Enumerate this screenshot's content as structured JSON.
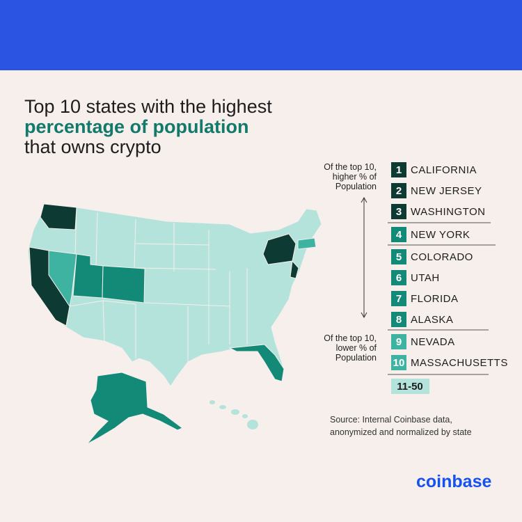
{
  "header": {
    "title": {
      "line1": "Top 10 states with the highest",
      "line2": "percentage of population",
      "line3": "that owns crypto"
    }
  },
  "legend": {
    "annotation_top": [
      "Of the top 10,",
      "higher % of",
      "Population"
    ],
    "annotation_bottom": [
      "Of the top 10,",
      "lower % of",
      "Population"
    ],
    "items": [
      {
        "rank": 1,
        "state": "CALIFORNIA"
      },
      {
        "rank": 2,
        "state": "NEW JERSEY"
      },
      {
        "rank": 3,
        "state": "WASHINGTON"
      },
      {
        "rank": 4,
        "state": "NEW YORK"
      },
      {
        "rank": 5,
        "state": "COLORADO"
      },
      {
        "rank": 6,
        "state": "UTAH"
      },
      {
        "rank": 7,
        "state": "FLORIDA"
      },
      {
        "rank": 8,
        "state": "ALASKA"
      },
      {
        "rank": 9,
        "state": "NEVADA"
      },
      {
        "rank": 10,
        "state": "MASSACHUSETTS"
      }
    ],
    "other": "11-50"
  },
  "source": [
    "Source: Internal Coinbase data,",
    "anonymized and normalized by state"
  ],
  "logo": "coinbase"
}
